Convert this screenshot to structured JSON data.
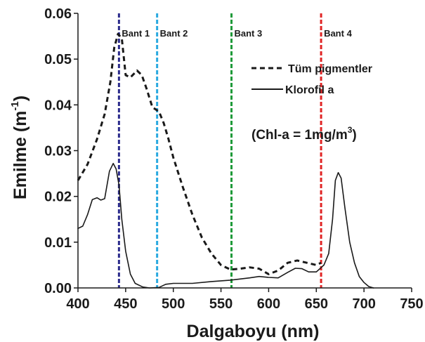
{
  "chart_data": {
    "type": "line",
    "xlabel": "Dalgaboyu (nm)",
    "ylabel_main": "Emilme (m",
    "ylabel_sup": "-1",
    "ylabel_end": ")",
    "xlim": [
      400,
      750
    ],
    "ylim": [
      0,
      0.06
    ],
    "x_ticks": [
      400,
      450,
      500,
      550,
      600,
      650,
      700,
      750
    ],
    "x_tick_labels": [
      "400",
      "450",
      "500",
      "550",
      "600",
      "650",
      "700",
      "750"
    ],
    "y_ticks": [
      0,
      0.01,
      0.02,
      0.03,
      0.04,
      0.05,
      0.06
    ],
    "y_tick_labels": [
      "0.00",
      "0.01",
      "0.02",
      "0.03",
      "0.04",
      "0.05",
      "0.06"
    ],
    "grid": false,
    "legend_position": "top-right",
    "annotation": {
      "prefix": "(Chl-a = 1mg/m",
      "sup": "3",
      "suffix": ")"
    },
    "bands": [
      {
        "label": "Bant 1",
        "x": 443,
        "color": "#2b2b8c"
      },
      {
        "label": "Bant 2",
        "x": 483,
        "color": "#29a9e0"
      },
      {
        "label": "Bant 3",
        "x": 561,
        "color": "#1f9a3a"
      },
      {
        "label": "Bant 4",
        "x": 655,
        "color": "#e02424"
      }
    ],
    "series": [
      {
        "name": "Tüm pigmentler",
        "style": "dashed",
        "points": [
          [
            400,
            0.0235
          ],
          [
            410,
            0.027
          ],
          [
            420,
            0.0325
          ],
          [
            428,
            0.038
          ],
          [
            434,
            0.045
          ],
          [
            438,
            0.0525
          ],
          [
            442,
            0.0555
          ],
          [
            446,
            0.0545
          ],
          [
            450,
            0.0465
          ],
          [
            455,
            0.046
          ],
          [
            462,
            0.0475
          ],
          [
            467,
            0.0465
          ],
          [
            472,
            0.0435
          ],
          [
            478,
            0.0395
          ],
          [
            485,
            0.0385
          ],
          [
            490,
            0.036
          ],
          [
            495,
            0.0325
          ],
          [
            500,
            0.0285
          ],
          [
            510,
            0.022
          ],
          [
            520,
            0.016
          ],
          [
            530,
            0.011
          ],
          [
            540,
            0.0075
          ],
          [
            550,
            0.005
          ],
          [
            560,
            0.004
          ],
          [
            570,
            0.0042
          ],
          [
            580,
            0.0045
          ],
          [
            590,
            0.0042
          ],
          [
            600,
            0.003
          ],
          [
            610,
            0.0038
          ],
          [
            620,
            0.0055
          ],
          [
            630,
            0.006
          ],
          [
            640,
            0.0055
          ],
          [
            650,
            0.005
          ],
          [
            655,
            0.0055
          ]
        ]
      },
      {
        "name": "Klorofil a",
        "style": "solid",
        "points": [
          [
            400,
            0.013
          ],
          [
            405,
            0.0135
          ],
          [
            410,
            0.016
          ],
          [
            415,
            0.0193
          ],
          [
            420,
            0.0197
          ],
          [
            424,
            0.0192
          ],
          [
            428,
            0.0195
          ],
          [
            433,
            0.0255
          ],
          [
            437,
            0.0272
          ],
          [
            440,
            0.026
          ],
          [
            443,
            0.0225
          ],
          [
            446,
            0.015
          ],
          [
            450,
            0.008
          ],
          [
            455,
            0.003
          ],
          [
            460,
            0.001
          ],
          [
            468,
            0.0002
          ],
          [
            475,
            0.0
          ],
          [
            485,
            0.0001
          ],
          [
            492,
            0.0008
          ],
          [
            500,
            0.001
          ],
          [
            520,
            0.001
          ],
          [
            540,
            0.0014
          ],
          [
            560,
            0.0017
          ],
          [
            580,
            0.0022
          ],
          [
            590,
            0.0025
          ],
          [
            600,
            0.0023
          ],
          [
            610,
            0.0022
          ],
          [
            620,
            0.0034
          ],
          [
            628,
            0.0043
          ],
          [
            635,
            0.0042
          ],
          [
            642,
            0.0035
          ],
          [
            650,
            0.0035
          ],
          [
            658,
            0.005
          ],
          [
            663,
            0.0075
          ],
          [
            667,
            0.015
          ],
          [
            670,
            0.0235
          ],
          [
            673,
            0.0252
          ],
          [
            676,
            0.024
          ],
          [
            680,
            0.0175
          ],
          [
            685,
            0.01
          ],
          [
            690,
            0.0055
          ],
          [
            695,
            0.0025
          ],
          [
            700,
            0.0012
          ],
          [
            705,
            0.0003
          ],
          [
            710,
            0.0
          ]
        ]
      }
    ]
  }
}
